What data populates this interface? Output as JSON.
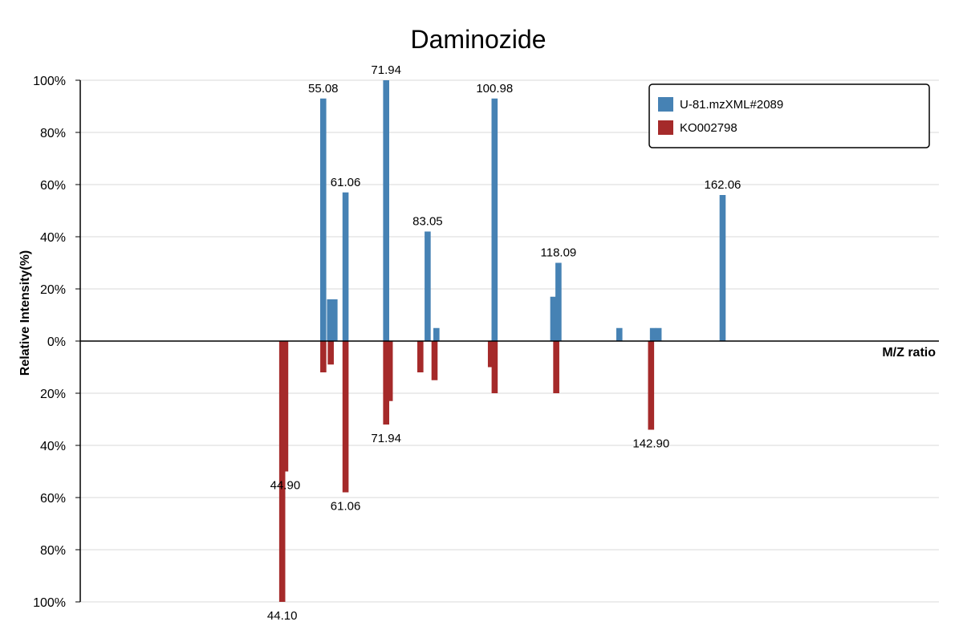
{
  "chart_data": {
    "type": "bar",
    "title": "Daminozide",
    "xlabel": "M/Z ratio",
    "ylabel": "Relative Intensity(%)",
    "y_ticks": [
      "100%",
      "80%",
      "60%",
      "40%",
      "20%",
      "0%",
      "20%",
      "40%",
      "60%",
      "80%",
      "100%"
    ],
    "ylim": [
      -100,
      100
    ],
    "xlim": [
      -10,
      220
    ],
    "grid": true,
    "legend_position": "top-right",
    "series": [
      {
        "name": "U-81.mzXML#2089",
        "color": "#4682b4",
        "direction": "up",
        "peaks": [
          {
            "mz": 55.08,
            "intensity": 93,
            "label": "55.08"
          },
          {
            "mz": 56.9,
            "intensity": 16
          },
          {
            "mz": 58.1,
            "intensity": 16
          },
          {
            "mz": 61.06,
            "intensity": 57,
            "label": "61.06"
          },
          {
            "mz": 71.94,
            "intensity": 100,
            "label": "71.94"
          },
          {
            "mz": 83.05,
            "intensity": 42,
            "label": "83.05"
          },
          {
            "mz": 85.4,
            "intensity": 5
          },
          {
            "mz": 100.98,
            "intensity": 93,
            "label": "100.98"
          },
          {
            "mz": 116.7,
            "intensity": 17
          },
          {
            "mz": 118.09,
            "intensity": 30,
            "label": "118.09"
          },
          {
            "mz": 134.4,
            "intensity": 5
          },
          {
            "mz": 143.4,
            "intensity": 5
          },
          {
            "mz": 144.9,
            "intensity": 5
          },
          {
            "mz": 162.06,
            "intensity": 56,
            "label": "162.06"
          }
        ]
      },
      {
        "name": "KO002798",
        "color": "#a52a2a",
        "direction": "down",
        "peaks": [
          {
            "mz": 44.1,
            "intensity": 100,
            "label": "44.10"
          },
          {
            "mz": 44.9,
            "intensity": 50,
            "label": "44.90"
          },
          {
            "mz": 55.1,
            "intensity": 12
          },
          {
            "mz": 57.1,
            "intensity": 9
          },
          {
            "mz": 61.06,
            "intensity": 58,
            "label": "61.06"
          },
          {
            "mz": 71.94,
            "intensity": 32,
            "label": "71.94"
          },
          {
            "mz": 72.9,
            "intensity": 23
          },
          {
            "mz": 81.1,
            "intensity": 12
          },
          {
            "mz": 84.9,
            "intensity": 15
          },
          {
            "mz": 100.0,
            "intensity": 10
          },
          {
            "mz": 101.0,
            "intensity": 20
          },
          {
            "mz": 117.5,
            "intensity": 20
          },
          {
            "mz": 142.9,
            "intensity": 34,
            "label": "142.90"
          }
        ]
      }
    ]
  }
}
